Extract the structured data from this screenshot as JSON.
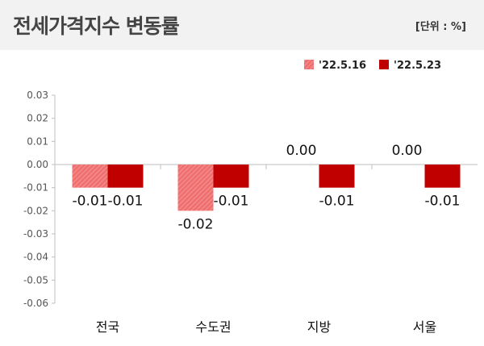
{
  "header": {
    "title": "전세가격지수 변동률",
    "unit": "[단위 : %]"
  },
  "chart_data": {
    "type": "bar",
    "categories": [
      "전국",
      "수도권",
      "지방",
      "서울"
    ],
    "series": [
      {
        "name": "'22.5.16",
        "values": [
          -0.01,
          -0.02,
          0.0,
          0.0
        ],
        "labels": [
          "-0.01",
          "-0.02",
          "0.00",
          "0.00"
        ],
        "color": "#f07070",
        "pattern": "hatched"
      },
      {
        "name": "'22.5.23",
        "values": [
          -0.01,
          -0.01,
          -0.01,
          -0.01
        ],
        "labels": [
          "-0.01",
          "-0.01",
          "-0.01",
          "-0.01"
        ],
        "color": "#c00000",
        "pattern": "solid"
      }
    ],
    "ylim": [
      -0.06,
      0.03
    ],
    "yticks": [
      0.03,
      0.02,
      0.01,
      0.0,
      -0.01,
      -0.02,
      -0.03,
      -0.04,
      -0.05,
      -0.06
    ],
    "ytick_labels": [
      "0.03",
      "0.02",
      "0.01",
      "0.00",
      "-0.01",
      "-0.02",
      "-0.03",
      "-0.04",
      "-0.05",
      "-0.06"
    ],
    "legend_position": "top-right",
    "grid": false
  }
}
